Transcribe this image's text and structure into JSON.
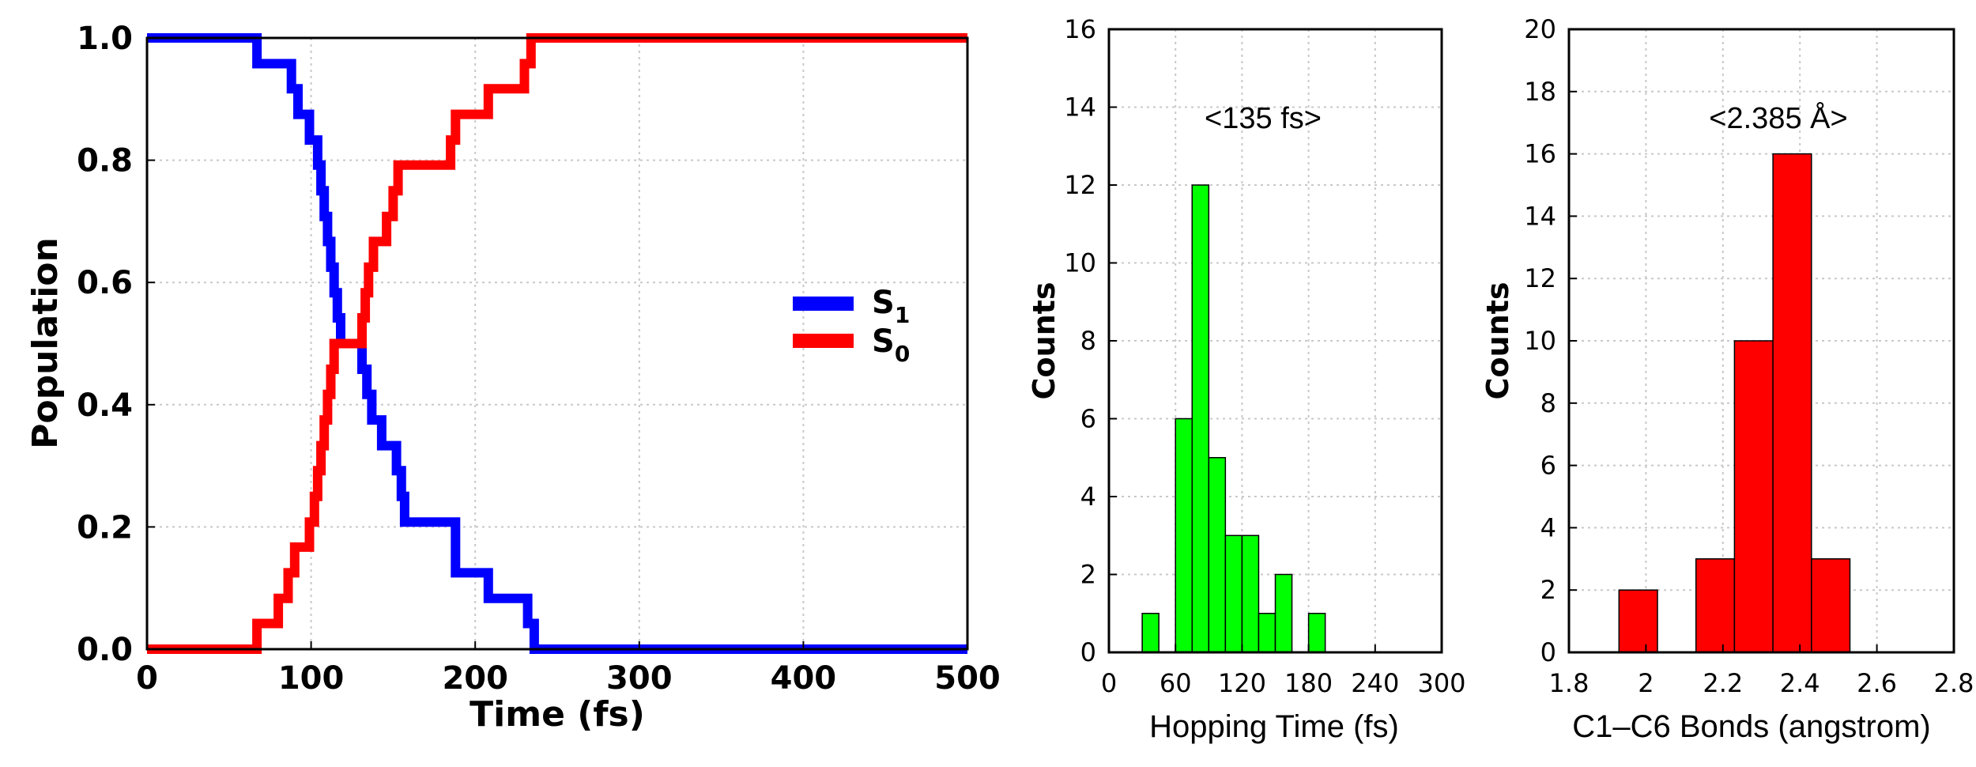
{
  "chart_data": [
    {
      "type": "line",
      "title": "",
      "xlabel": "Time (fs)",
      "ylabel": "Population",
      "xlim": [
        0,
        500
      ],
      "ylim": [
        0,
        1
      ],
      "x_ticks": [
        "0",
        "100",
        "200",
        "300",
        "400",
        "500"
      ],
      "y_ticks": [
        "0.0",
        "0.2",
        "0.4",
        "0.6",
        "0.8",
        "1.0"
      ],
      "grid": true,
      "legend_position": "center-right",
      "series": [
        {
          "name_base": "S",
          "name_sub": "1",
          "color": "#0000ff",
          "points": [
            [
              0,
              1.0
            ],
            [
              67,
              1.0
            ],
            [
              67,
              0.958
            ],
            [
              80,
              0.958
            ],
            [
              80,
              0.958
            ],
            [
              88,
              0.958
            ],
            [
              88,
              0.917
            ],
            [
              92,
              0.917
            ],
            [
              92,
              0.875
            ],
            [
              99,
              0.875
            ],
            [
              99,
              0.833
            ],
            [
              104,
              0.833
            ],
            [
              104,
              0.792
            ],
            [
              106,
              0.792
            ],
            [
              106,
              0.75
            ],
            [
              108,
              0.75
            ],
            [
              108,
              0.708
            ],
            [
              110,
              0.708
            ],
            [
              110,
              0.667
            ],
            [
              112,
              0.667
            ],
            [
              112,
              0.625
            ],
            [
              114,
              0.625
            ],
            [
              114,
              0.583
            ],
            [
              116,
              0.583
            ],
            [
              116,
              0.542
            ],
            [
              118,
              0.542
            ],
            [
              118,
              0.5
            ],
            [
              131,
              0.5
            ],
            [
              131,
              0.458
            ],
            [
              134,
              0.458
            ],
            [
              134,
              0.417
            ],
            [
              137,
              0.417
            ],
            [
              137,
              0.375
            ],
            [
              143,
              0.375
            ],
            [
              143,
              0.333
            ],
            [
              152,
              0.333
            ],
            [
              152,
              0.292
            ],
            [
              155,
              0.292
            ],
            [
              155,
              0.25
            ],
            [
              157,
              0.25
            ],
            [
              157,
              0.208
            ],
            [
              188,
              0.208
            ],
            [
              188,
              0.125
            ],
            [
              208,
              0.125
            ],
            [
              208,
              0.083
            ],
            [
              232,
              0.083
            ],
            [
              232,
              0.042
            ],
            [
              236,
              0.042
            ],
            [
              236,
              0.0
            ],
            [
              500,
              0.0
            ]
          ]
        },
        {
          "name_base": "S",
          "name_sub": "0",
          "color": "#ff0000",
          "points": [
            [
              0,
              0.0
            ],
            [
              67,
              0.0
            ],
            [
              67,
              0.042
            ],
            [
              80,
              0.042
            ],
            [
              80,
              0.083
            ],
            [
              86,
              0.083
            ],
            [
              86,
              0.125
            ],
            [
              90,
              0.125
            ],
            [
              90,
              0.167
            ],
            [
              99,
              0.167
            ],
            [
              99,
              0.208
            ],
            [
              102,
              0.208
            ],
            [
              102,
              0.25
            ],
            [
              104,
              0.25
            ],
            [
              104,
              0.292
            ],
            [
              106,
              0.292
            ],
            [
              106,
              0.333
            ],
            [
              108,
              0.333
            ],
            [
              108,
              0.375
            ],
            [
              110,
              0.375
            ],
            [
              110,
              0.417
            ],
            [
              112,
              0.417
            ],
            [
              112,
              0.458
            ],
            [
              114,
              0.458
            ],
            [
              114,
              0.5
            ],
            [
              131,
              0.5
            ],
            [
              131,
              0.542
            ],
            [
              133,
              0.542
            ],
            [
              133,
              0.583
            ],
            [
              135,
              0.583
            ],
            [
              135,
              0.625
            ],
            [
              138,
              0.625
            ],
            [
              138,
              0.667
            ],
            [
              146,
              0.667
            ],
            [
              146,
              0.708
            ],
            [
              150,
              0.708
            ],
            [
              150,
              0.75
            ],
            [
              153,
              0.75
            ],
            [
              153,
              0.792
            ],
            [
              185,
              0.792
            ],
            [
              185,
              0.833
            ],
            [
              188,
              0.833
            ],
            [
              188,
              0.875
            ],
            [
              208,
              0.875
            ],
            [
              208,
              0.917
            ],
            [
              230,
              0.917
            ],
            [
              230,
              0.958
            ],
            [
              234,
              0.958
            ],
            [
              234,
              1.0
            ],
            [
              500,
              1.0
            ]
          ]
        }
      ]
    },
    {
      "type": "bar",
      "title": "",
      "xlabel": "Hopping Time (fs)",
      "ylabel": "Counts",
      "annotation": "<135 fs>",
      "xlim": [
        0,
        300
      ],
      "ylim": [
        0,
        16
      ],
      "x_ticks": [
        "0",
        "60",
        "120",
        "180",
        "240",
        "300"
      ],
      "y_ticks": [
        "0",
        "2",
        "4",
        "6",
        "8",
        "10",
        "12",
        "14",
        "16"
      ],
      "grid": true,
      "color": "#00ff00",
      "bins": [
        {
          "x0": 30,
          "x1": 45,
          "count": 1
        },
        {
          "x0": 60,
          "x1": 75,
          "count": 6
        },
        {
          "x0": 75,
          "x1": 90,
          "count": 12
        },
        {
          "x0": 90,
          "x1": 105,
          "count": 5
        },
        {
          "x0": 105,
          "x1": 120,
          "count": 3
        },
        {
          "x0": 120,
          "x1": 135,
          "count": 3
        },
        {
          "x0": 135,
          "x1": 150,
          "count": 1
        },
        {
          "x0": 150,
          "x1": 165,
          "count": 2
        },
        {
          "x0": 180,
          "x1": 195,
          "count": 1
        }
      ]
    },
    {
      "type": "bar",
      "title": "",
      "xlabel": "C1–C6 Bonds (angstrom)",
      "ylabel": "Counts",
      "annotation": "<2.385 Å>",
      "xlim": [
        1.8,
        2.8
      ],
      "ylim": [
        0,
        20
      ],
      "x_ticks": [
        "1.8",
        "2",
        "2.2",
        "2.4",
        "2.6",
        "2.8"
      ],
      "y_ticks": [
        "0",
        "2",
        "4",
        "6",
        "8",
        "10",
        "12",
        "14",
        "16",
        "18",
        "20"
      ],
      "grid": true,
      "color": "#ff0000",
      "bins": [
        {
          "x0": 1.93,
          "x1": 2.03,
          "count": 2
        },
        {
          "x0": 2.13,
          "x1": 2.23,
          "count": 3
        },
        {
          "x0": 2.23,
          "x1": 2.33,
          "count": 10
        },
        {
          "x0": 2.33,
          "x1": 2.43,
          "count": 16
        },
        {
          "x0": 2.43,
          "x1": 2.53,
          "count": 3
        }
      ]
    }
  ]
}
